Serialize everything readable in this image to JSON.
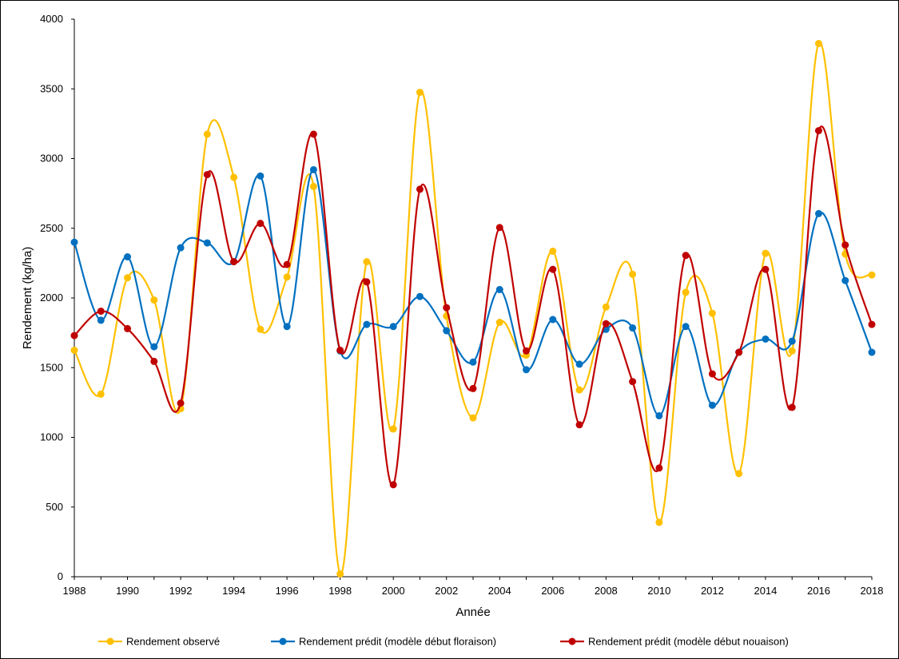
{
  "chart_data": {
    "type": "line",
    "xlabel": "Année",
    "ylabel": "Rendement (kg/ha)",
    "xlim": [
      1988,
      2018
    ],
    "ylim": [
      0,
      4000
    ],
    "x_ticks": [
      1988,
      1990,
      1992,
      1994,
      1996,
      1998,
      2000,
      2002,
      2004,
      2006,
      2008,
      2010,
      2012,
      2014,
      2016,
      2018
    ],
    "y_ticks": [
      0,
      500,
      1000,
      1500,
      2000,
      2500,
      3000,
      3500,
      4000
    ],
    "grid": false,
    "legend_position": "bottom",
    "smooth": true,
    "x": [
      1988,
      1989,
      1990,
      1991,
      1992,
      1993,
      1994,
      1995,
      1996,
      1997,
      1998,
      1999,
      2000,
      2001,
      2002,
      2003,
      2004,
      2005,
      2006,
      2007,
      2008,
      2009,
      2010,
      2011,
      2012,
      2013,
      2014,
      2015,
      2016,
      2017,
      2018
    ],
    "series": [
      {
        "name": "Rendement observé",
        "color": "#FFC000",
        "values": [
          1625,
          1310,
          2145,
          1985,
          1205,
          3175,
          2865,
          1775,
          2150,
          2800,
          20,
          2260,
          1060,
          3475,
          1870,
          1140,
          1825,
          1590,
          2335,
          1340,
          1935,
          2170,
          390,
          2040,
          1890,
          740,
          2320,
          1620,
          3825,
          2315,
          2165
        ]
      },
      {
        "name": "Rendement prédit (modèle début floraison)",
        "color": "#0070C0",
        "values": [
          2400,
          1840,
          2295,
          1650,
          2360,
          2395,
          2260,
          2875,
          1795,
          2920,
          1620,
          1810,
          1795,
          2010,
          1765,
          1540,
          2060,
          1485,
          1845,
          1525,
          1775,
          1785,
          1155,
          1795,
          1230,
          1610,
          1705,
          1690,
          2605,
          2125,
          1610
        ]
      },
      {
        "name": "Rendement prédit (modèle début nouaison)",
        "color": "#C00000",
        "values": [
          1730,
          1905,
          1780,
          1545,
          1245,
          2885,
          2260,
          2535,
          2240,
          3175,
          1625,
          2115,
          660,
          2780,
          1930,
          1350,
          2505,
          1620,
          2205,
          1090,
          1815,
          1400,
          780,
          2305,
          1455,
          1610,
          2205,
          1215,
          3200,
          2380,
          1810
        ]
      }
    ]
  }
}
